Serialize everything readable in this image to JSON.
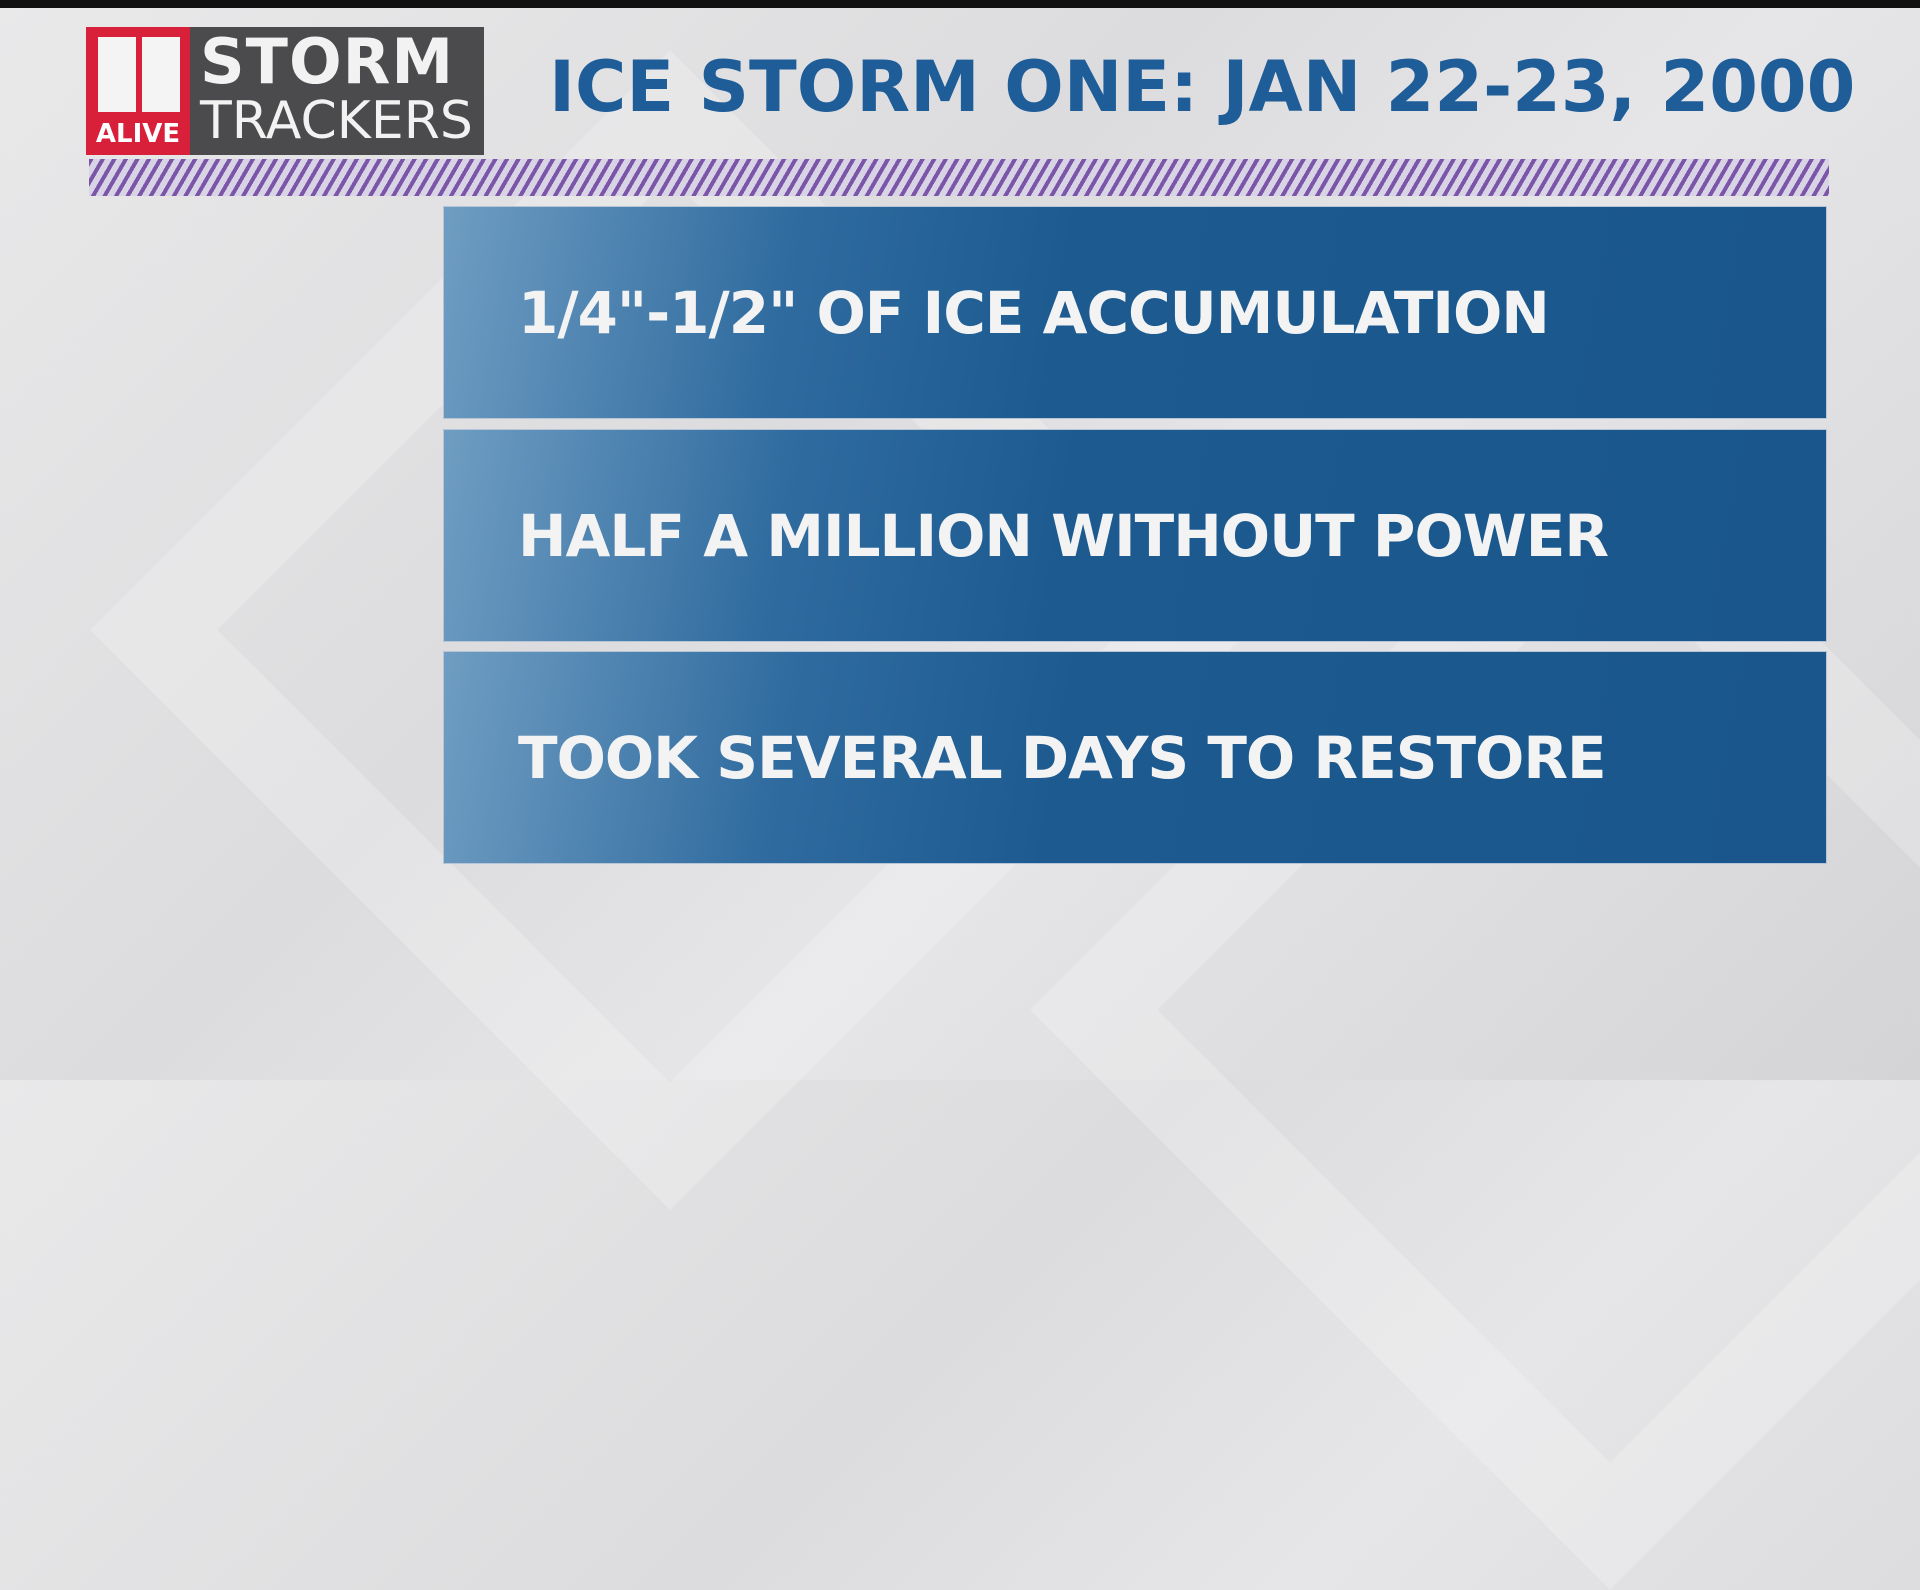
{
  "logo": {
    "number": "11",
    "station": "ALIVE",
    "line1": "STORM",
    "line2": "TRACKERS",
    "brand_color": "#d8203a"
  },
  "header": {
    "title": "ICE STORM ONE: JAN 22-23, 2000",
    "title_color": "#1e5d98"
  },
  "facts": [
    {
      "text": "1/4\"-1/2\" OF ICE ACCUMULATION"
    },
    {
      "text": "HALF A MILLION WITHOUT POWER"
    },
    {
      "text": "TOOK SEVERAL DAYS TO RESTORE"
    }
  ],
  "colors": {
    "panel": "#1a568b",
    "stripe": "#7a55a8"
  }
}
